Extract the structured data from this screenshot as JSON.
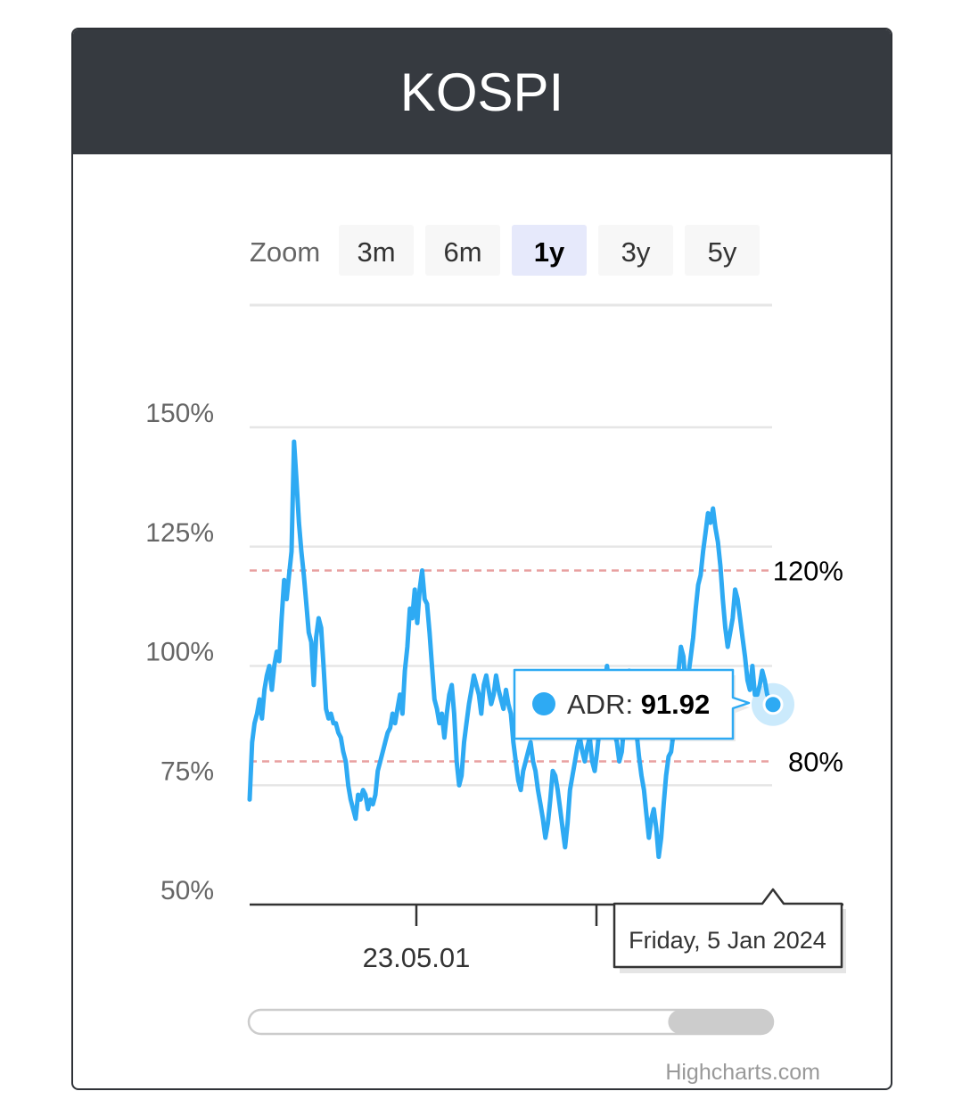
{
  "header": {
    "title": "KOSPI"
  },
  "zoom": {
    "label": "Zoom",
    "buttons": [
      {
        "label": "3m",
        "selected": false
      },
      {
        "label": "6m",
        "selected": false
      },
      {
        "label": "1y",
        "selected": true
      },
      {
        "label": "3y",
        "selected": false
      },
      {
        "label": "5y",
        "selected": false
      }
    ]
  },
  "chart_data": {
    "type": "line",
    "title": "KOSPI",
    "ylim": [
      50,
      150
    ],
    "yticks": [
      {
        "value": 150,
        "label": "150%"
      },
      {
        "value": 125,
        "label": "125%"
      },
      {
        "value": 100,
        "label": "100%"
      },
      {
        "value": 75,
        "label": "75%"
      },
      {
        "value": 50,
        "label": "50%"
      }
    ],
    "x_tick_labels": [
      "23.05.01"
    ],
    "plot_lines": [
      {
        "value": 120,
        "label": "120%",
        "color": "#e8a0a0"
      },
      {
        "value": 80,
        "label": "80%",
        "color": "#e8a0a0"
      }
    ],
    "series": [
      {
        "name": "ADR",
        "color": "#2eaaf3",
        "values": [
          72,
          84,
          88,
          90,
          93,
          89,
          95,
          98,
          100,
          95,
          100,
          103,
          101,
          110,
          118,
          114,
          119,
          124,
          147,
          139,
          130,
          124,
          119,
          113,
          107,
          105,
          96,
          106,
          110,
          108,
          100,
          91,
          89,
          90,
          88,
          88,
          86,
          85,
          82,
          80,
          75,
          72,
          70,
          68,
          73,
          72,
          74,
          73,
          70,
          72,
          71,
          73,
          78,
          80,
          82,
          84,
          86,
          87,
          90,
          88,
          91,
          94,
          90,
          99,
          104,
          112,
          110,
          116,
          109,
          116,
          120,
          114,
          113,
          107,
          100,
          93,
          91,
          88,
          90,
          85,
          90,
          94,
          96,
          90,
          80,
          75,
          77,
          84,
          88,
          92,
          95,
          98,
          96,
          94,
          90,
          96,
          98,
          95,
          92,
          94,
          98,
          95,
          93,
          91,
          95,
          92,
          90,
          84,
          80,
          76,
          74,
          78,
          80,
          82,
          84,
          80,
          78,
          74,
          71,
          68,
          64,
          67,
          72,
          78,
          77,
          74,
          70,
          66,
          62,
          67,
          74,
          77,
          80,
          83,
          85,
          82,
          80,
          83,
          85,
          80,
          78,
          82,
          87,
          93,
          96,
          100,
          96,
          90,
          86,
          84,
          80,
          82,
          88,
          95,
          99,
          97,
          91,
          86,
          81,
          77,
          74,
          69,
          64,
          68,
          70,
          66,
          60,
          64,
          71,
          77,
          81,
          82,
          86,
          93,
          99,
          104,
          102,
          95,
          98,
          102,
          106,
          112,
          117,
          119,
          124,
          128,
          132,
          130,
          133,
          129,
          126,
          121,
          114,
          108,
          104,
          107,
          110,
          116,
          114,
          110,
          106,
          102,
          97,
          95,
          100,
          94,
          94,
          96,
          99,
          97,
          94,
          93,
          92
        ]
      }
    ],
    "tooltip": {
      "series": "ADR",
      "value": "91.92",
      "date": "Friday, 5 Jan 2024"
    },
    "grid": true,
    "legend": "none"
  },
  "navigator": {
    "selection_fraction": [
      0.8,
      1.0
    ]
  },
  "credits": "Highcharts.com"
}
